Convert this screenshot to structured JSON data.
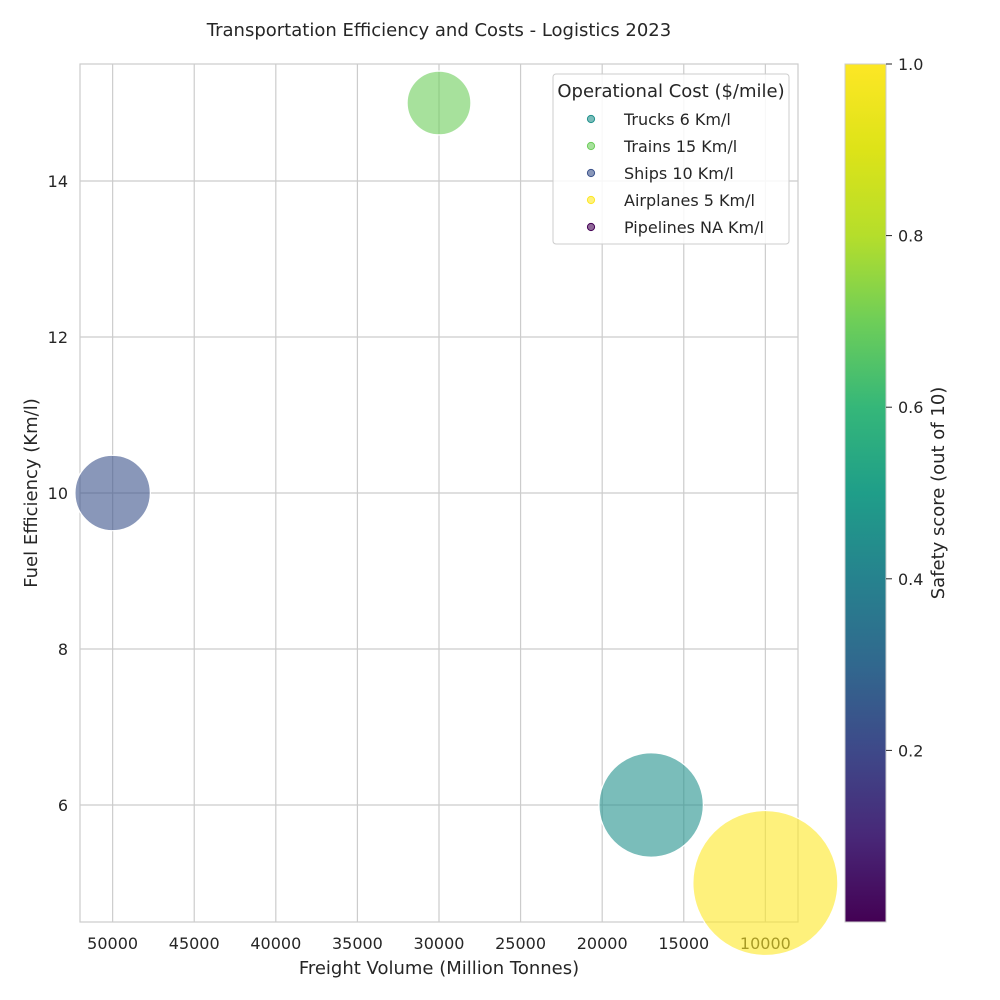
{
  "chart_data": {
    "type": "scatter",
    "title": "Transportation Efficiency and Costs - Logistics 2023",
    "xlabel": "Freight Volume (Million Tonnes)",
    "ylabel": "Fuel Efficiency (Km/l)",
    "xlim": [
      52000,
      8000
    ],
    "ylim": [
      4.5,
      15.5
    ],
    "x_inverted": true,
    "xticks": [
      50000,
      45000,
      40000,
      35000,
      30000,
      25000,
      20000,
      15000,
      10000
    ],
    "yticks": [
      6,
      8,
      10,
      12,
      14
    ],
    "grid": true,
    "legend": {
      "title": "Operational Cost ($/mile)",
      "placement": "top-right",
      "entries": [
        "Trucks 6 Km/l",
        "Trains 15 Km/l",
        "Ships 10 Km/l",
        "Airplanes 5 Km/l",
        "Pipelines NA Km/l"
      ]
    },
    "colorbar": {
      "label": "Safety score (out of 10)",
      "range": [
        0,
        1
      ],
      "ticks": [
        0.2,
        0.4,
        0.6,
        0.8,
        1.0
      ],
      "tick_labels": [
        "0.2",
        "0.4",
        "0.6",
        "0.8",
        "1.0"
      ],
      "colormap": "viridis"
    },
    "points": [
      {
        "name": "Trucks",
        "x": 17000,
        "y": 6,
        "size": 18,
        "color": "#21918c"
      },
      {
        "name": "Trains",
        "x": 30000,
        "y": 15,
        "size": 11,
        "color": "#6ccd5a"
      },
      {
        "name": "Ships",
        "x": 50000,
        "y": 10,
        "size": 13,
        "color": "#3b528b"
      },
      {
        "name": "Airplanes",
        "x": 10000,
        "y": 5,
        "size": 25,
        "color": "#fde725"
      },
      {
        "name": "Pipelines",
        "x": null,
        "y": null,
        "size": 0,
        "color": "#440154"
      }
    ]
  }
}
